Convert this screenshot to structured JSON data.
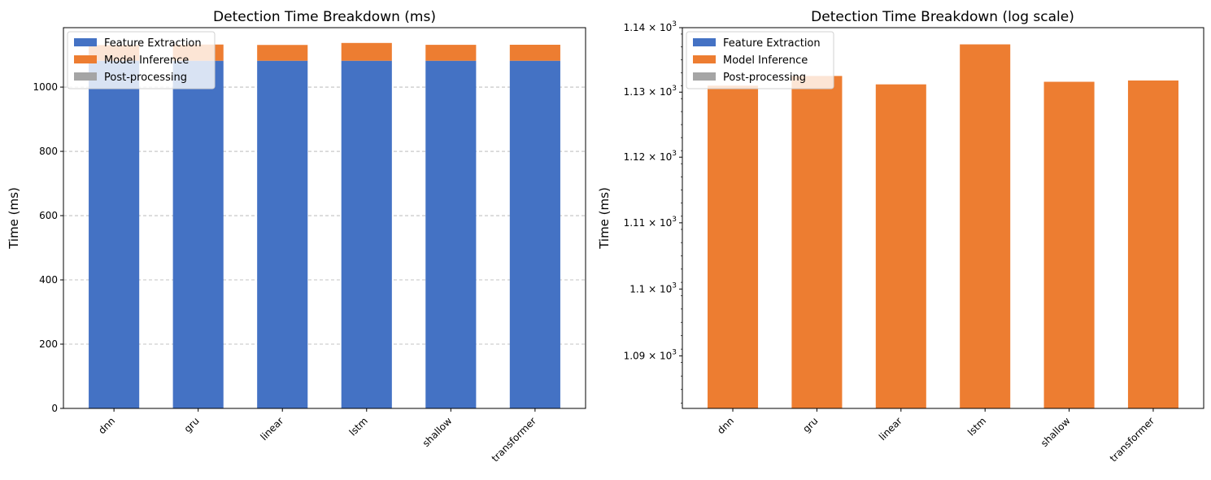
{
  "colors": {
    "feature": "#4472c4",
    "inference": "#ed7d31",
    "post": "#a5a5a5"
  },
  "chart_data": [
    {
      "type": "bar",
      "stacked": true,
      "title": "Detection Time Breakdown (ms)",
      "xlabel": "",
      "ylabel": "Time (ms)",
      "categories": [
        "dnn",
        "gru",
        "linear",
        "lstm",
        "shallow",
        "transformer"
      ],
      "series": [
        {
          "name": "Feature Extraction",
          "color": "#4472c4",
          "values": [
            1082,
            1082,
            1082,
            1082,
            1082,
            1082
          ]
        },
        {
          "name": "Model Inference",
          "color": "#ed7d31",
          "values": [
            49,
            50.5,
            49.2,
            55.4,
            49.6,
            49.8
          ]
        },
        {
          "name": "Post-processing",
          "color": "#a5a5a5",
          "values": [
            0,
            0,
            0,
            0,
            0,
            0
          ]
        }
      ],
      "ylim": [
        0,
        1185
      ],
      "yticks": [
        0,
        200,
        400,
        600,
        800,
        1000
      ],
      "grid": "y",
      "legend": "top-left"
    },
    {
      "type": "bar",
      "stacked": true,
      "log_y": true,
      "title": "Detection Time Breakdown (log scale)",
      "xlabel": "",
      "ylabel": "Time (ms)",
      "categories": [
        "dnn",
        "gru",
        "linear",
        "lstm",
        "shallow",
        "transformer"
      ],
      "series": [
        {
          "name": "Feature Extraction",
          "color": "#4472c4",
          "values": [
            1082,
            1082,
            1082,
            1082,
            1082,
            1082
          ]
        },
        {
          "name": "Model Inference",
          "color": "#ed7d31",
          "values": [
            49,
            50.5,
            49.2,
            55.4,
            49.6,
            49.8
          ]
        },
        {
          "name": "Post-processing",
          "color": "#a5a5a5",
          "values": [
            0,
            0,
            0,
            0,
            0,
            0
          ]
        }
      ],
      "ylim": [
        1082.2,
        1140
      ],
      "yticks": [
        1090,
        1100,
        1110,
        1120,
        1130,
        1140
      ],
      "ytick_labels": [
        {
          "mant": "1.09",
          "exp": "3"
        },
        {
          "mant": "1.1",
          "exp": "3"
        },
        {
          "mant": "1.11",
          "exp": "3"
        },
        {
          "mant": "1.12",
          "exp": "3"
        },
        {
          "mant": "1.13",
          "exp": "3"
        },
        {
          "mant": "1.14",
          "exp": "3"
        }
      ],
      "grid": "none",
      "legend": "top-left"
    }
  ]
}
